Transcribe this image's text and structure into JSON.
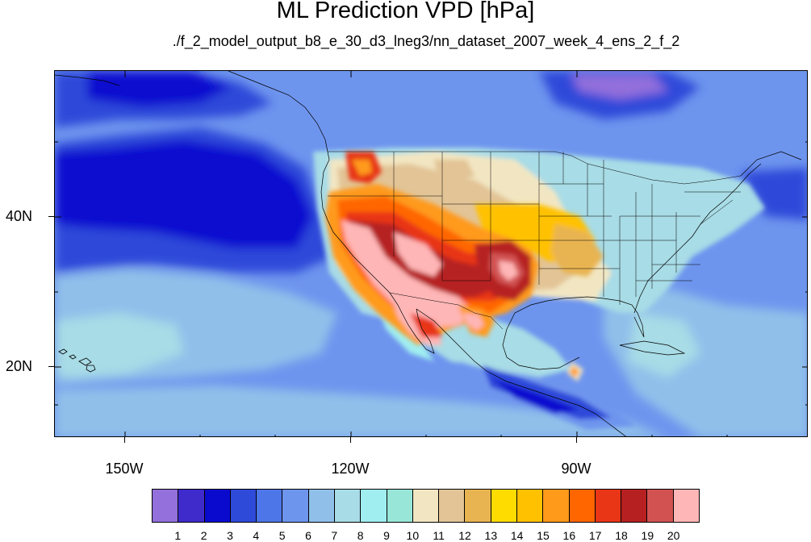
{
  "title": "ML Prediction VPD [hPa]",
  "subtitle": "./f_2_model_output_b8_e_30_d3_lneg3/nn_dataset_2007_week_4_ens_2_f_2",
  "map": {
    "projection": "cylindrical equidistant",
    "lon_range": [
      -160,
      -60
    ],
    "lat_range": [
      10,
      59
    ],
    "lat_labels": [
      "40N",
      "20N"
    ],
    "lon_labels": [
      "150W",
      "120W",
      "90W"
    ],
    "field": "vapor pressure deficit",
    "units": "hPa"
  },
  "colorbar": {
    "levels": [
      "1",
      "2",
      "3",
      "4",
      "5",
      "6",
      "7",
      "8",
      "9",
      "10",
      "11",
      "12",
      "13",
      "14",
      "15",
      "16",
      "17",
      "18",
      "19",
      "20"
    ],
    "colors": [
      "#9370DB",
      "#3F2ACB",
      "#0A0ACF",
      "#2E4AD9",
      "#4D76E8",
      "#6E95EE",
      "#90C0EA",
      "#A8DCE6",
      "#A0EEF0",
      "#98E6D8",
      "#F2E6C2",
      "#E2C496",
      "#E8B451",
      "#FFDC00",
      "#FFC100",
      "#FF9A1A",
      "#FF6600",
      "#E83616",
      "#B62020",
      "#D25252",
      "#FFB6B6"
    ]
  }
}
